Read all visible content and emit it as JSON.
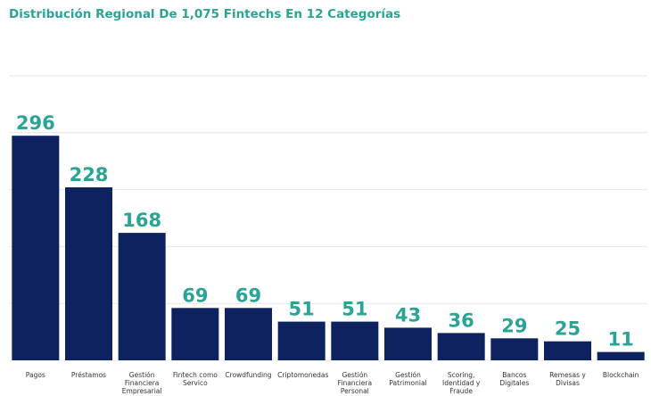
{
  "chart_data": {
    "type": "bar",
    "title": "Distribución Regional De 1,075 Fintechs En 12 Categorías",
    "categories": [
      "Pagos",
      "Préstamos",
      "Gestión Financiera Empresarial",
      "Fintech como Servico",
      "Crowdfunding",
      "Criptomonedas",
      "Gestión Financiera Personal",
      "Gestión Patrimonial",
      "Scoring, Identidad y Fraude",
      "Bancos Digitales",
      "Remesas y Divisas",
      "Blockchain"
    ],
    "values": [
      296,
      228,
      168,
      69,
      69,
      51,
      51,
      43,
      36,
      29,
      25,
      11
    ],
    "color": "#0e2260",
    "label_color": "#2ba395",
    "ylim": [
      0,
      375
    ],
    "yticks": [
      0,
      75,
      150,
      225,
      300,
      375
    ],
    "grid": true
  }
}
